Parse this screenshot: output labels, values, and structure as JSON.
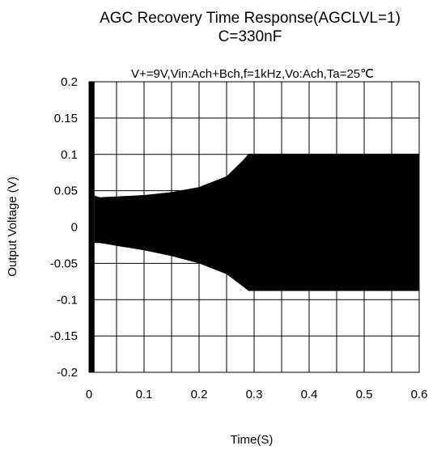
{
  "chart_data": {
    "type": "area",
    "title_line1": "AGC Recovery Time Response(AGCLVL=1)",
    "title_line2": "C=330nF",
    "subtitle": "V+=9V,Vin:Ach+Bch,f=1kHz,Vo:Ach,Ta=25℃",
    "xlabel": "Time(S)",
    "ylabel": "Output Voltage (V)",
    "xlim": [
      0,
      0.6
    ],
    "ylim": [
      -0.2,
      0.2
    ],
    "x_tick_labels": [
      "0",
      "0.1",
      "0.2",
      "0.3",
      "0.4",
      "0.5",
      "0.6"
    ],
    "y_tick_labels": [
      "0.2",
      "0.15",
      "0.1",
      "0.05",
      "0",
      "-0.05",
      "-0.1",
      "-0.15",
      "-0.2"
    ],
    "grid": true,
    "fill_color": "#000000",
    "series": [
      {
        "x": [
          0.01,
          0.02,
          0.05,
          0.1,
          0.15,
          0.2,
          0.25,
          0.28,
          0.29,
          0.35,
          0.4,
          0.5,
          0.6
        ],
        "upper": [
          0.043,
          0.041,
          0.042,
          0.044,
          0.048,
          0.055,
          0.07,
          0.092,
          0.101,
          0.101,
          0.101,
          0.101,
          0.101
        ],
        "lower": [
          -0.022,
          -0.022,
          -0.026,
          -0.032,
          -0.04,
          -0.05,
          -0.065,
          -0.082,
          -0.088,
          -0.088,
          -0.088,
          -0.088,
          -0.088
        ]
      }
    ],
    "start_bar": {
      "x": [
        0,
        0.01
      ],
      "y": [
        -0.2,
        0.2
      ]
    }
  }
}
